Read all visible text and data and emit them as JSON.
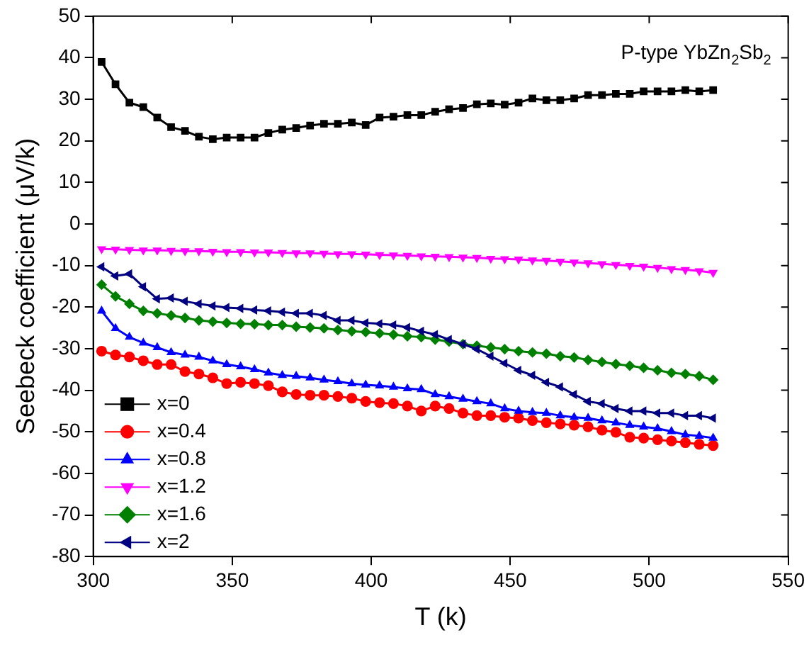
{
  "chart_data": {
    "type": "line",
    "xlabel": "T (k)",
    "ylabel": "Seebeck coefficient (μV/k)",
    "annotations": [
      "P-type YbZn$_{2}$Sb$_{2}$"
    ],
    "x": [
      303,
      308,
      313,
      318,
      323,
      328,
      333,
      338,
      343,
      348,
      353,
      358,
      363,
      368,
      373,
      378,
      383,
      388,
      393,
      398,
      403,
      408,
      413,
      418,
      423,
      428,
      433,
      438,
      443,
      448,
      453,
      458,
      463,
      468,
      473,
      478,
      483,
      488,
      493,
      498,
      503,
      508,
      513,
      518,
      523
    ],
    "series": [
      {
        "name": "x=0",
        "color": "#000000",
        "marker": "square",
        "values": [
          39.0,
          33.6,
          29.2,
          28.1,
          25.6,
          23.3,
          22.4,
          21.0,
          20.4,
          20.8,
          20.8,
          20.8,
          21.9,
          22.7,
          23.1,
          23.7,
          24.1,
          24.1,
          24.4,
          23.8,
          25.6,
          25.8,
          26.2,
          26.2,
          27.0,
          27.6,
          27.9,
          28.8,
          29.0,
          28.7,
          29.2,
          30.2,
          29.8,
          29.8,
          30.2,
          31.0,
          31.0,
          31.3,
          31.3,
          31.9,
          31.9,
          31.9,
          32.2,
          31.9,
          32.2
        ]
      },
      {
        "name": "x=0.4",
        "color": "#ff0000",
        "marker": "circle",
        "values": [
          -30.6,
          -31.5,
          -32.0,
          -32.9,
          -33.8,
          -33.8,
          -35.5,
          -36.1,
          -37.0,
          -38.4,
          -38.1,
          -38.4,
          -38.9,
          -40.4,
          -41.0,
          -41.2,
          -41.2,
          -41.5,
          -41.9,
          -42.7,
          -43.0,
          -43.2,
          -43.8,
          -45.0,
          -43.8,
          -44.4,
          -45.5,
          -46.1,
          -46.1,
          -46.5,
          -46.7,
          -47.3,
          -47.8,
          -48.1,
          -48.4,
          -48.8,
          -49.6,
          -50.1,
          -51.3,
          -51.5,
          -51.9,
          -52.2,
          -52.6,
          -53.0,
          -53.3
        ]
      },
      {
        "name": "x=0.8",
        "color": "#0000ff",
        "marker": "triangle",
        "values": [
          -20.9,
          -25.1,
          -27.2,
          -28.6,
          -29.7,
          -30.9,
          -31.5,
          -32.0,
          -32.9,
          -33.8,
          -34.3,
          -35.0,
          -35.8,
          -36.4,
          -36.6,
          -37.0,
          -37.5,
          -37.9,
          -38.4,
          -38.7,
          -38.9,
          -39.2,
          -39.6,
          -39.8,
          -41.0,
          -41.5,
          -42.1,
          -42.7,
          -43.2,
          -44.4,
          -45.0,
          -45.3,
          -45.5,
          -46.1,
          -46.5,
          -46.7,
          -47.3,
          -47.8,
          -48.4,
          -48.8,
          -49.2,
          -49.9,
          -50.7,
          -51.0,
          -51.5
        ]
      },
      {
        "name": "x=1.2",
        "color": "#ff00ff",
        "marker": "triangle-down",
        "values": [
          -6.0,
          -6.1,
          -6.2,
          -6.3,
          -6.3,
          -6.4,
          -6.5,
          -6.5,
          -6.6,
          -6.7,
          -6.7,
          -6.8,
          -6.8,
          -6.9,
          -7.0,
          -7.0,
          -7.1,
          -7.2,
          -7.2,
          -7.3,
          -7.4,
          -7.5,
          -7.6,
          -7.7,
          -7.8,
          -7.9,
          -8.0,
          -8.1,
          -8.3,
          -8.4,
          -8.5,
          -8.7,
          -8.8,
          -9.0,
          -9.2,
          -9.4,
          -9.6,
          -9.8,
          -10.0,
          -10.2,
          -10.5,
          -10.8,
          -11.0,
          -11.3,
          -11.7
        ]
      },
      {
        "name": "x=1.6",
        "color": "#008000",
        "marker": "diamond",
        "values": [
          -14.6,
          -17.4,
          -19.2,
          -20.9,
          -21.5,
          -22.0,
          -22.6,
          -23.2,
          -23.5,
          -23.8,
          -24.0,
          -24.1,
          -24.3,
          -24.3,
          -24.7,
          -24.9,
          -25.1,
          -25.5,
          -25.8,
          -26.0,
          -26.3,
          -26.6,
          -27.0,
          -27.2,
          -27.8,
          -28.3,
          -28.9,
          -29.3,
          -29.7,
          -30.1,
          -30.6,
          -30.9,
          -31.2,
          -31.8,
          -32.1,
          -32.7,
          -33.2,
          -33.7,
          -34.1,
          -34.6,
          -35.2,
          -35.8,
          -36.1,
          -36.6,
          -37.5
        ]
      },
      {
        "name": "x=2",
        "color": "#000080",
        "marker": "triangle-left",
        "values": [
          -10.3,
          -12.5,
          -12.0,
          -15.1,
          -18.0,
          -17.8,
          -18.6,
          -19.2,
          -19.7,
          -20.1,
          -20.3,
          -20.7,
          -20.9,
          -21.2,
          -21.5,
          -21.5,
          -22.0,
          -23.2,
          -23.2,
          -23.8,
          -24.0,
          -24.3,
          -24.9,
          -25.8,
          -26.6,
          -27.8,
          -28.9,
          -30.1,
          -31.8,
          -33.5,
          -35.2,
          -36.4,
          -38.1,
          -39.2,
          -41.0,
          -42.7,
          -43.2,
          -44.4,
          -45.0,
          -45.0,
          -45.5,
          -45.5,
          -46.1,
          -46.1,
          -46.7
        ]
      }
    ],
    "xlim": [
      300,
      550
    ],
    "xticks": [
      300,
      350,
      400,
      450,
      500,
      550
    ],
    "ylim": [
      -80,
      50
    ],
    "yticks": [
      -80,
      -70,
      -60,
      -50,
      -40,
      -30,
      -20,
      -10,
      0,
      10,
      20,
      30,
      40,
      50
    ],
    "grid": false,
    "legend": "bottom left",
    "line_style": "solid"
  }
}
